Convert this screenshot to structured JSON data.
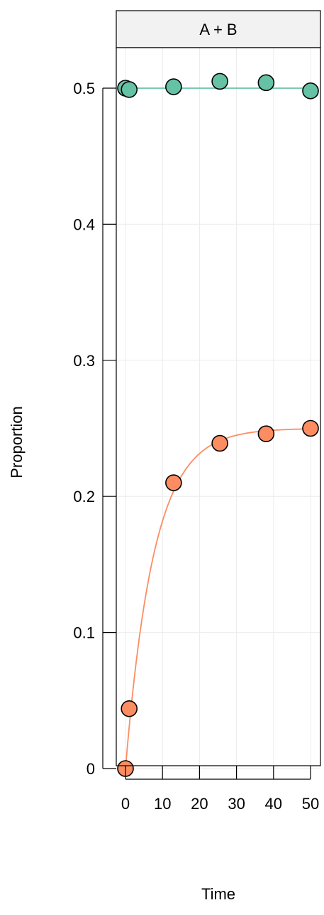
{
  "chart_data": {
    "type": "scatter",
    "panel_label": "A + B",
    "xlabel": "Time",
    "ylabel": "Proportion",
    "xlim": [
      -2.5,
      52.5
    ],
    "ylim": [
      -0.025,
      0.53
    ],
    "xticks": [
      0,
      10,
      20,
      30,
      40,
      50
    ],
    "xtick_labels": [
      "0",
      "10",
      "20",
      "30",
      "40",
      "50"
    ],
    "yticks": [
      0,
      0.1,
      0.2,
      0.3,
      0.4,
      0.5
    ],
    "ytick_labels": [
      "0",
      "0.1",
      "0.2",
      "0.3",
      "0.4",
      "0.5"
    ],
    "grid": true,
    "series": [
      {
        "color": "#66C2A5",
        "points": [
          [
            0,
            0.5
          ],
          [
            1,
            0.499
          ],
          [
            13,
            0.501
          ],
          [
            25.5,
            0.505
          ],
          [
            38,
            0.504
          ],
          [
            50,
            0.498
          ]
        ],
        "fit": {
          "kind": "constant",
          "value": 0.5
        }
      },
      {
        "color": "#FC8D62",
        "points": [
          [
            0,
            0.0
          ],
          [
            1,
            0.044
          ],
          [
            13,
            0.21
          ],
          [
            25.5,
            0.239
          ],
          [
            38,
            0.246
          ],
          [
            50,
            0.25
          ]
        ],
        "fit": {
          "kind": "exponential_saturation",
          "asymptote": 0.25,
          "rate": 0.13
        }
      }
    ]
  }
}
